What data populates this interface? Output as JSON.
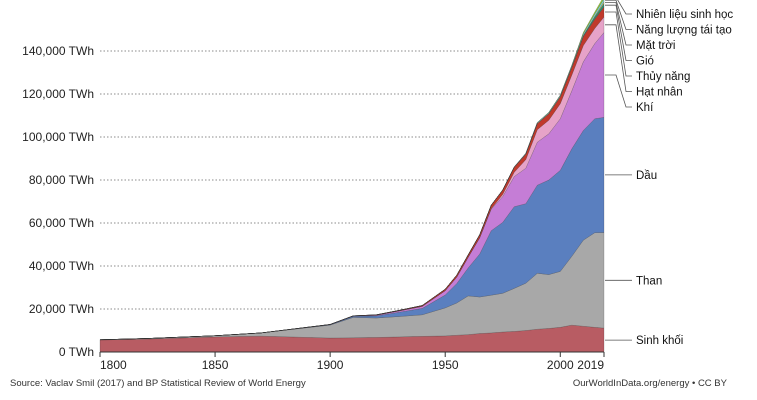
{
  "chart_data": {
    "type": "area",
    "stacked": true,
    "x": [
      1800,
      1820,
      1850,
      1870,
      1900,
      1910,
      1920,
      1930,
      1940,
      1950,
      1955,
      1960,
      1965,
      1970,
      1975,
      1980,
      1985,
      1990,
      1995,
      2000,
      2005,
      2010,
      2015,
      2019
    ],
    "series": [
      {
        "name": "Sinh khối",
        "color": "#b85c63",
        "values": [
          5600,
          6000,
          7000,
          7400,
          6500,
          6600,
          6800,
          7000,
          7300,
          7500,
          7800,
          8100,
          8600,
          8900,
          9300,
          9600,
          10000,
          10600,
          11000,
          11500,
          12500,
          12000,
          11500,
          11100
        ]
      },
      {
        "name": "Than",
        "color": "#a8a8a8",
        "values": [
          100,
          300,
          600,
          1500,
          6000,
          9500,
          9000,
          9500,
          10000,
          13000,
          15000,
          18000,
          17000,
          17500,
          18000,
          20000,
          22000,
          26000,
          25000,
          26000,
          32000,
          40000,
          44000,
          44500
        ]
      },
      {
        "name": "Dầu",
        "color": "#5a7fbf",
        "values": [
          0,
          0,
          0,
          0,
          200,
          500,
          1000,
          2000,
          3000,
          6000,
          9000,
          13000,
          20000,
          30000,
          33000,
          38000,
          37000,
          41000,
          44000,
          47000,
          50000,
          51000,
          53000,
          53500
        ]
      },
      {
        "name": "Khí",
        "color": "#c57dd6",
        "values": [
          0,
          0,
          0,
          0,
          70,
          150,
          300,
          600,
          900,
          2000,
          3000,
          5000,
          7500,
          10000,
          12000,
          14000,
          16500,
          20000,
          21500,
          24000,
          27000,
          32000,
          35000,
          39500
        ]
      },
      {
        "name": "Hạt nhân",
        "color": "#e6a3c8",
        "values": [
          0,
          0,
          0,
          0,
          0,
          0,
          0,
          0,
          0,
          0,
          0,
          10,
          50,
          200,
          1000,
          2000,
          4000,
          5800,
          6300,
          7000,
          7300,
          7500,
          7000,
          7200
        ]
      },
      {
        "name": "Thủy năng",
        "color": "#c0392b",
        "values": [
          0,
          0,
          0,
          0,
          50,
          100,
          200,
          300,
          450,
          700,
          900,
          1100,
          1400,
          1700,
          2000,
          2300,
          2600,
          2900,
          3100,
          3300,
          3600,
          4200,
          4400,
          4700
        ]
      },
      {
        "name": "Gió",
        "color": "#2e8b6e",
        "values": [
          0,
          0,
          0,
          0,
          0,
          0,
          0,
          0,
          0,
          0,
          0,
          0,
          0,
          0,
          0,
          0,
          0,
          0,
          10,
          30,
          100,
          400,
          900,
          1600
        ]
      },
      {
        "name": "Mặt trời",
        "color": "#e3c56d",
        "values": [
          0,
          0,
          0,
          0,
          0,
          0,
          0,
          0,
          0,
          0,
          0,
          0,
          0,
          0,
          0,
          0,
          0,
          0,
          0,
          0,
          10,
          40,
          300,
          800
        ]
      },
      {
        "name": "Năng lượng tái tạo",
        "color": "#7fd3c8",
        "values": [
          0,
          0,
          0,
          0,
          0,
          0,
          0,
          0,
          0,
          0,
          0,
          0,
          0,
          0,
          100,
          200,
          300,
          400,
          500,
          600,
          700,
          900,
          1200,
          1500
        ]
      },
      {
        "name": "Nhiên liệu sinh học",
        "color": "#9acd32",
        "values": [
          0,
          0,
          0,
          0,
          0,
          0,
          0,
          0,
          0,
          0,
          0,
          0,
          0,
          0,
          0,
          0,
          20,
          40,
          60,
          100,
          200,
          600,
          900,
          1200
        ]
      }
    ],
    "ylim": [
      0,
      160000
    ],
    "xlim": [
      1800,
      2019
    ],
    "yticks": [
      0,
      20000,
      40000,
      60000,
      80000,
      100000,
      120000,
      140000
    ],
    "ytick_labels": [
      "0 TWh",
      "20,000 TWh",
      "40,000 TWh",
      "60,000 TWh",
      "80,000 TWh",
      "100,000 TWh",
      "120,000 TWh",
      "140,000 TWh"
    ],
    "xticks": [
      1800,
      1850,
      1900,
      1950,
      2000,
      2019
    ],
    "xtick_labels": [
      "1800",
      "1850",
      "1900",
      "1950",
      "2000",
      "2019"
    ],
    "grid": "horizontal-dotted",
    "legend": "right-inline"
  },
  "footer": {
    "source": "Source: Vaclav Smil (2017) and BP Statistical Review of World Energy",
    "credit": "OurWorldInData.org/energy • CC BY"
  }
}
